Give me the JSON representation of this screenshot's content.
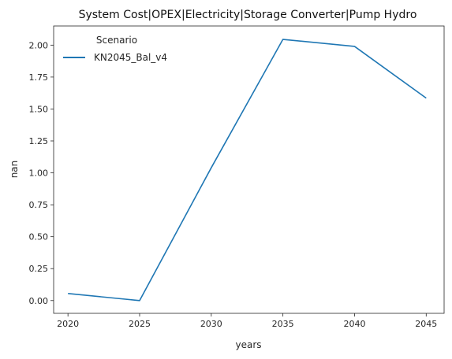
{
  "chart_data": {
    "type": "line",
    "title": "System Cost|OPEX|Electricity|Storage Converter|Pump Hydro",
    "xlabel": "years",
    "ylabel": "nan",
    "x": [
      2020,
      2025,
      2030,
      2035,
      2040,
      2045
    ],
    "xticks": [
      "2020",
      "2025",
      "2030",
      "2035",
      "2040",
      "2045"
    ],
    "yticks": [
      "0.00",
      "0.25",
      "0.50",
      "0.75",
      "1.00",
      "1.25",
      "1.50",
      "1.75",
      "2.00"
    ],
    "xlim": [
      2019.0,
      2046.25
    ],
    "ylim": [
      -0.1,
      2.15
    ],
    "legend": {
      "title": "Scenario",
      "placement": "top-left"
    },
    "series": [
      {
        "name": "KN2045_Bal_v4",
        "color": "#1f77b4",
        "values": [
          0.055,
          0.0,
          1.04,
          2.045,
          1.99,
          1.585
        ]
      }
    ],
    "grid": false
  }
}
